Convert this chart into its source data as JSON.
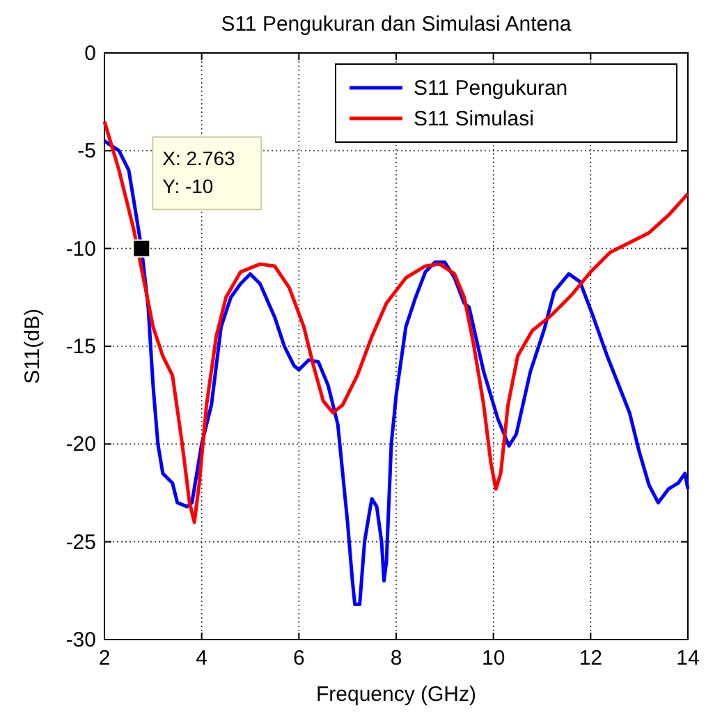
{
  "chart_data": {
    "type": "line",
    "title": "S11 Pengukuran dan Simulasi Antena",
    "xlabel": "Frequency (GHz)",
    "ylabel": "S11(dB)",
    "xlim": [
      2,
      14
    ],
    "ylim": [
      -30,
      0
    ],
    "xticks": [
      2,
      4,
      6,
      8,
      10,
      12,
      14
    ],
    "yticks": [
      -30,
      -25,
      -20,
      -15,
      -10,
      -5,
      0
    ],
    "grid": true,
    "legend": "top right",
    "line_style": "solid",
    "marker": "none",
    "annotations": [
      {
        "text": "X: 2.763\nY: -10",
        "x": 2.763,
        "y": -10
      }
    ],
    "series": [
      {
        "name": "S11 Pengukuran",
        "color": "#0000ff",
        "x": [
          2,
          2.3,
          2.5,
          2.6,
          2.763,
          2.9,
          3,
          3.1,
          3.2,
          3.4,
          3.5,
          3.7,
          3.8,
          3.9,
          4,
          4.2,
          4.4,
          4.6,
          4.8,
          5,
          5.2,
          5.5,
          5.7,
          5.9,
          6,
          6.2,
          6.4,
          6.6,
          6.8,
          7,
          7.1,
          7.15,
          7.25,
          7.35,
          7.45,
          7.5,
          7.6,
          7.7,
          7.75,
          7.8,
          7.9,
          8,
          8.2,
          8.4,
          8.6,
          8.8,
          9,
          9.2,
          9.4,
          9.5,
          9.8,
          10.09,
          10.32,
          10.47,
          10.76,
          11.05,
          11.25,
          11.55,
          11.78,
          12.04,
          12.34,
          12.8,
          13,
          13.2,
          13.39,
          13.6,
          13.8,
          13.94,
          14
        ],
        "values": [
          -4.5,
          -5,
          -6,
          -7.5,
          -10,
          -13,
          -17,
          -20,
          -21.5,
          -22,
          -23,
          -23.2,
          -23,
          -21.5,
          -20,
          -18,
          -14,
          -12.5,
          -11.8,
          -11.3,
          -11.8,
          -13.5,
          -15,
          -16,
          -16.2,
          -15.7,
          -15.8,
          -17,
          -19,
          -24,
          -27,
          -28.2,
          -28.2,
          -25,
          -23.5,
          -22.8,
          -23.2,
          -25,
          -27,
          -26,
          -20,
          -17.5,
          -14,
          -12.5,
          -11.2,
          -10.7,
          -10.7,
          -11.5,
          -12.8,
          -13,
          -16.3,
          -18.7,
          -20.1,
          -19.5,
          -16.3,
          -14.1,
          -12.2,
          -11.3,
          -11.7,
          -13.4,
          -15.5,
          -18.4,
          -20.4,
          -22.1,
          -23,
          -22.3,
          -22,
          -21.5,
          -22.3
        ]
      },
      {
        "name": "S11 Simulasi",
        "color": "#ff0000",
        "x": [
          2,
          2.3,
          2.6,
          2.8,
          3,
          3.2,
          3.4,
          3.6,
          3.75,
          3.85,
          3.95,
          4.1,
          4.3,
          4.5,
          4.8,
          5.2,
          5.5,
          5.8,
          6.1,
          6.3,
          6.5,
          6.7,
          6.9,
          7.2,
          7.5,
          7.8,
          8.2,
          8.6,
          8.9,
          9.2,
          9.4,
          9.6,
          9.8,
          9.95,
          10.05,
          10.15,
          10.3,
          10.5,
          10.8,
          11.2,
          11.6,
          12,
          12.4,
          12.8,
          13.2,
          13.6,
          14
        ],
        "values": [
          -3.5,
          -6,
          -9,
          -11.5,
          -14,
          -15.5,
          -16.5,
          -20,
          -23,
          -24,
          -22,
          -18,
          -14.5,
          -12.5,
          -11.2,
          -10.8,
          -10.9,
          -12,
          -14,
          -16,
          -17.8,
          -18.4,
          -18,
          -16.5,
          -14.5,
          -12.8,
          -11.5,
          -10.9,
          -10.8,
          -11.3,
          -12.5,
          -15,
          -18,
          -21,
          -22.3,
          -21.5,
          -18,
          -15.5,
          -14.2,
          -13.4,
          -12.4,
          -11.2,
          -10.2,
          -9.7,
          -9.2,
          -8.3,
          -7.2
        ]
      }
    ]
  }
}
